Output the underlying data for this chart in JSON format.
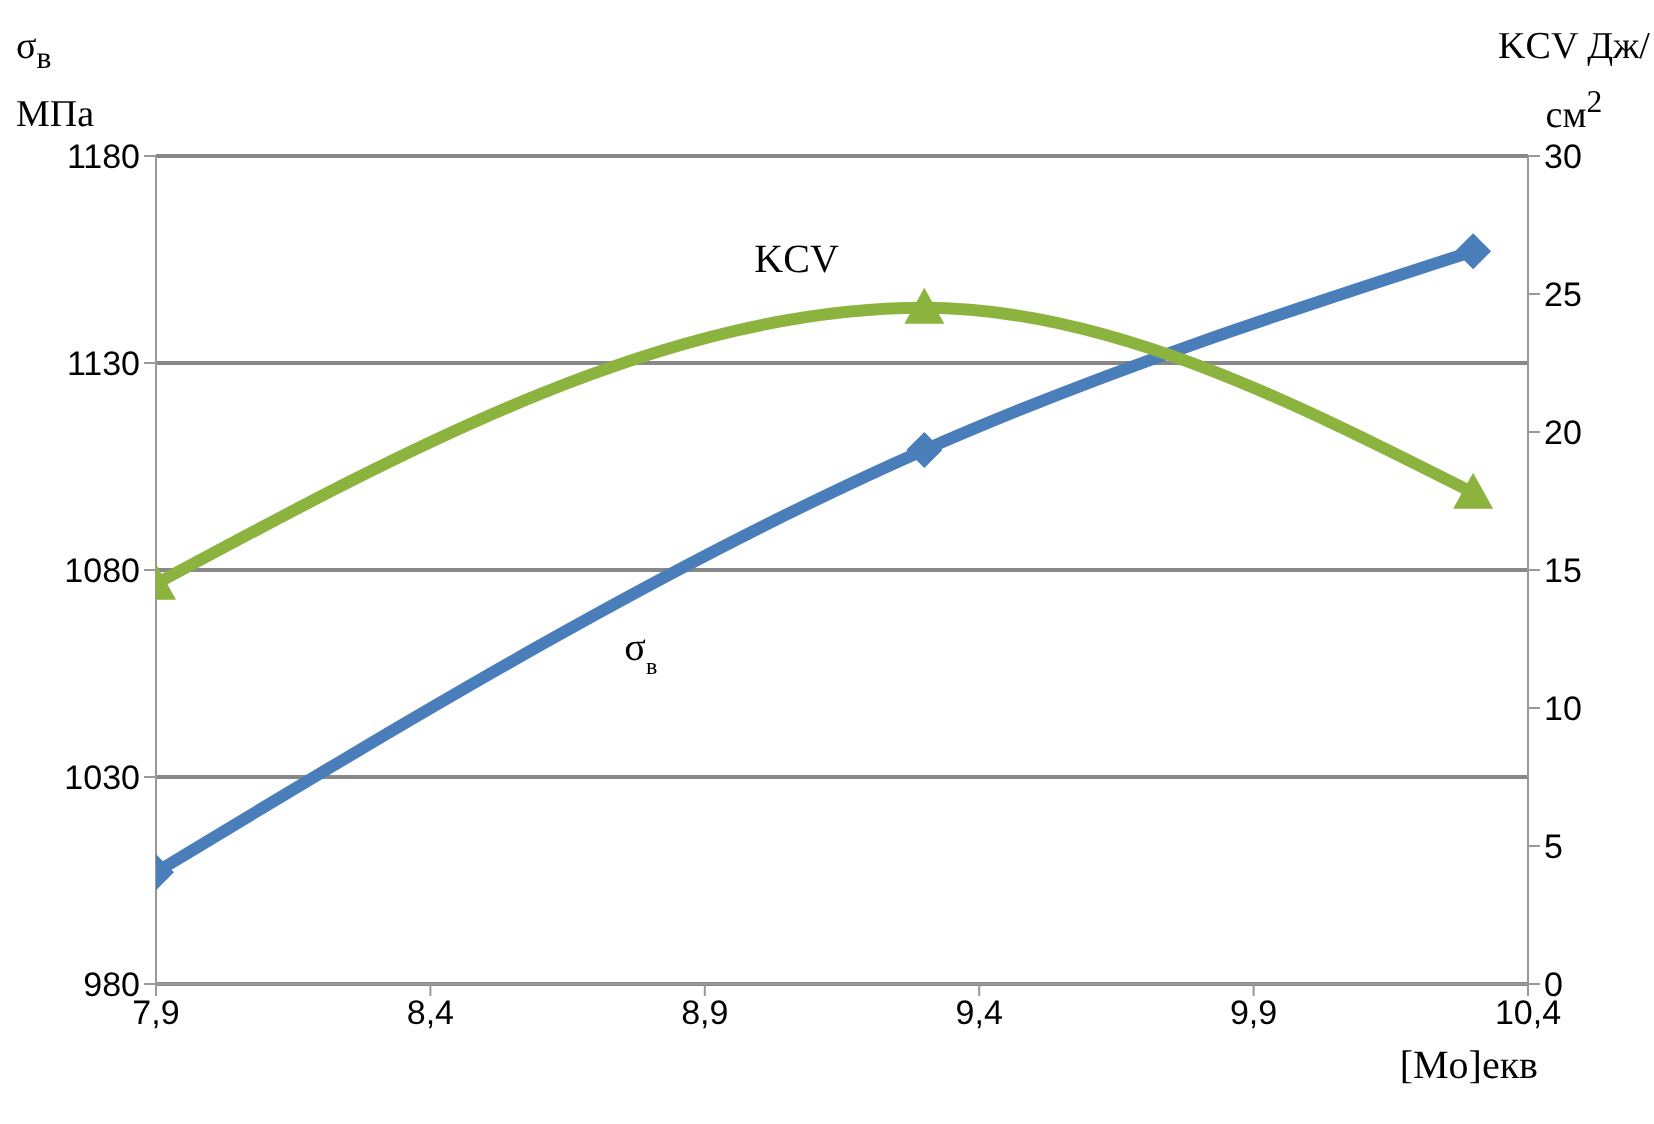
{
  "chart_data": {
    "type": "line",
    "ylabel": "σ$_{в}$ МПа",
    "y2label": "KCV Дж/см$^{2}$",
    "xlabel": "[Mo]екв",
    "x": [
      7.9,
      9.3,
      10.3
    ],
    "series": [
      {
        "name": "σ$_{в}$",
        "color": "#4a7ebb",
        "values": [
          1007,
          1109,
          1157
        ],
        "marker": "diamond"
      },
      {
        "name": "KCV",
        "color": "#8db33f",
        "values": [
          14.5,
          24.5,
          17.8
        ],
        "axis": "y2",
        "marker": "triangle"
      }
    ],
    "xlim": [
      7.9,
      10.4
    ],
    "xticks": [
      {
        "value": 7.9,
        "label": "7,9"
      },
      {
        "value": 8.4,
        "label": "8,4"
      },
      {
        "value": 8.9,
        "label": "8,9"
      },
      {
        "value": 9.4,
        "label": "9,4"
      },
      {
        "value": 9.9,
        "label": "9,9"
      },
      {
        "value": 10.4,
        "label": "10,4"
      }
    ],
    "ylim": [
      980,
      1180
    ],
    "yticks": [
      980,
      1030,
      1080,
      1130,
      1180
    ],
    "y2lim": [
      0,
      30
    ],
    "y2ticks": [
      0,
      5,
      10,
      15,
      20,
      25,
      30
    ],
    "grid": "y",
    "line_style": "solid"
  }
}
